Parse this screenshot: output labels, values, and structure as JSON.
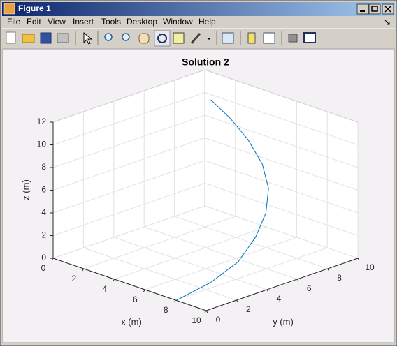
{
  "window": {
    "title": "Figure 1",
    "menu": [
      "File",
      "Edit",
      "View",
      "Insert",
      "Tools",
      "Desktop",
      "Window",
      "Help"
    ]
  },
  "chart_data": {
    "type": "line3d",
    "title": "Solution 2",
    "xlabel": "x (m)",
    "ylabel": "y (m)",
    "zlabel": "z (m)",
    "x": [
      3.05,
      4.05,
      5.18,
      6.53,
      7.62,
      8.42,
      8.96,
      9.28,
      8.92,
      8.03
    ],
    "y": [
      7.32,
      7.61,
      7.62,
      7.2,
      6.51,
      5.53,
      4.3,
      2.84,
      1.36,
      0.04
    ],
    "z": [
      12,
      10.67,
      9.33,
      8,
      6.67,
      5.33,
      4,
      2.67,
      1.33,
      0
    ],
    "color": "#0072bd",
    "xlim": [
      0,
      10
    ],
    "xticks": [
      0,
      2,
      4,
      6,
      8,
      10
    ],
    "ylim": [
      0,
      10
    ],
    "yticks": [
      0,
      2,
      4,
      6,
      8,
      10
    ],
    "zlim": [
      0,
      12
    ],
    "zticks": [
      0,
      2,
      4,
      6,
      8,
      10,
      12
    ],
    "grid": true
  }
}
